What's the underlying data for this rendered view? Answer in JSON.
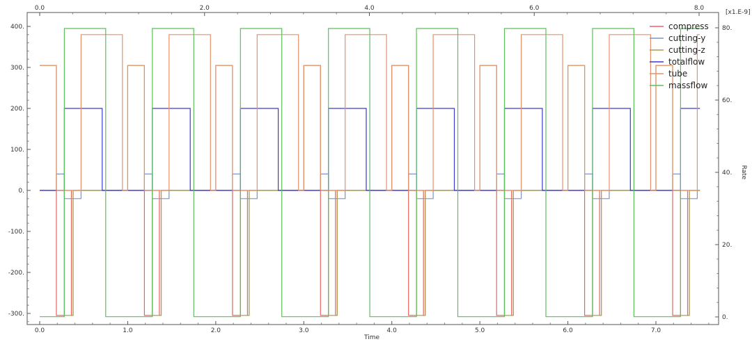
{
  "chart_data": {
    "type": "line",
    "xlabel": "Time",
    "ylabel_right": "Rate",
    "right_exponent_label": "[x1.E-9]",
    "bottom_axis": {
      "range": [
        -0.1,
        7.5
      ],
      "ticks": [
        "0.0",
        "1.0",
        "2.0",
        "3.0",
        "4.0",
        "5.0",
        "6.0",
        "7.0"
      ]
    },
    "top_axis": {
      "range": [
        -0.1,
        8.0
      ],
      "ticks": [
        "0.0",
        "2.0",
        "4.0",
        "6.0",
        "8.0"
      ]
    },
    "left_axis": {
      "range": [
        -310,
        410
      ],
      "ticks": [
        "400.",
        "300.",
        "200.",
        "100.",
        "0.",
        "-100.",
        "-200.",
        "-300."
      ]
    },
    "right_axis": {
      "range": [
        -1.0,
        82.0
      ],
      "ticks": [
        "80.",
        "60.",
        "40.",
        "20.",
        "0."
      ]
    },
    "grid": false,
    "legend_position": "top-right",
    "colors": {
      "compress": "#e8645f",
      "cutting-y": "#7e94c4",
      "cutting-z": "#a8a24e",
      "totalflow": "#3a3acf",
      "tube": "#e8906a",
      "massflow": "#5cbf5c"
    },
    "series": [
      {
        "name": "compress",
        "axis": "left",
        "period": 1.0,
        "cycles": 8,
        "base": 0,
        "segments": [
          [
            0.0,
            0.19,
            0
          ],
          [
            0.19,
            0.28,
            -305
          ],
          [
            0.28,
            0.36,
            0
          ],
          [
            0.36,
            0.38,
            -305
          ],
          [
            0.38,
            1.0,
            0
          ]
        ]
      },
      {
        "name": "cutting-y",
        "axis": "left",
        "period": 1.0,
        "cycles": 8,
        "base": 0,
        "segments": [
          [
            0.0,
            0.19,
            0
          ],
          [
            0.19,
            0.28,
            40
          ],
          [
            0.28,
            0.47,
            -20
          ],
          [
            0.47,
            1.0,
            0
          ]
        ]
      },
      {
        "name": "cutting-z",
        "axis": "left",
        "period": 1.0,
        "cycles": 8,
        "base": 0,
        "segments": [
          [
            0.0,
            0.19,
            305
          ],
          [
            0.19,
            0.28,
            0
          ],
          [
            0.28,
            0.38,
            -305
          ],
          [
            0.38,
            0.47,
            0
          ],
          [
            0.47,
            1.0,
            0
          ]
        ]
      },
      {
        "name": "totalflow",
        "axis": "left",
        "period": 1.0,
        "cycles": 8,
        "base": 0,
        "segments": [
          [
            0.0,
            0.28,
            0
          ],
          [
            0.28,
            0.71,
            200
          ],
          [
            0.71,
            1.0,
            0
          ]
        ]
      },
      {
        "name": "tube",
        "axis": "left",
        "period": 1.0,
        "cycles": 8,
        "base": 0,
        "segments": [
          [
            0.0,
            0.19,
            305
          ],
          [
            0.19,
            0.47,
            0
          ],
          [
            0.47,
            0.94,
            380
          ],
          [
            0.94,
            1.0,
            0
          ]
        ]
      },
      {
        "name": "massflow",
        "axis": "left",
        "period": 1.0,
        "cycles": 8,
        "base": -308,
        "segments": [
          [
            0.0,
            0.28,
            -308
          ],
          [
            0.28,
            0.75,
            395
          ],
          [
            0.75,
            1.0,
            -308
          ]
        ]
      }
    ]
  }
}
